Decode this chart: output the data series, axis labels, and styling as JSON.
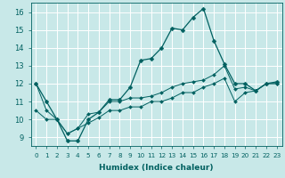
{
  "xlabel": "Humidex (Indice chaleur)",
  "ylabel": "",
  "background_color": "#c8e8e8",
  "grid_color": "#ffffff",
  "line_color": "#006060",
  "xlim": [
    -0.5,
    23.5
  ],
  "ylim": [
    8.5,
    16.5
  ],
  "xticks": [
    0,
    1,
    2,
    3,
    4,
    5,
    6,
    7,
    8,
    9,
    10,
    11,
    12,
    13,
    14,
    15,
    16,
    17,
    18,
    19,
    20,
    21,
    22,
    23
  ],
  "yticks": [
    9,
    10,
    11,
    12,
    13,
    14,
    15,
    16
  ],
  "series": [
    {
      "x": [
        0,
        1,
        2,
        3,
        4,
        5,
        6,
        7,
        8,
        9,
        10,
        11,
        12,
        13,
        14,
        15,
        16,
        17,
        18,
        19,
        20,
        21,
        22,
        23
      ],
      "y": [
        12,
        11,
        10,
        8.8,
        8.8,
        10,
        10.4,
        11.1,
        11.1,
        11.8,
        13.3,
        13.4,
        14.0,
        15.1,
        15.0,
        15.7,
        16.2,
        14.4,
        13.1,
        12.0,
        12.0,
        11.6,
        12.0,
        12.1
      ]
    },
    {
      "x": [
        0,
        1,
        2,
        3,
        4,
        5,
        6,
        7,
        8,
        9,
        10,
        11,
        12,
        13,
        14,
        15,
        16,
        17,
        18,
        19,
        20,
        21,
        22,
        23
      ],
      "y": [
        12,
        10.5,
        10.0,
        9.2,
        9.5,
        10.3,
        10.4,
        11.0,
        11.0,
        11.2,
        11.2,
        11.3,
        11.5,
        11.8,
        12.0,
        12.1,
        12.2,
        12.5,
        13.0,
        11.7,
        11.8,
        11.6,
        12.0,
        12.0
      ]
    },
    {
      "x": [
        0,
        1,
        2,
        3,
        4,
        5,
        6,
        7,
        8,
        9,
        10,
        11,
        12,
        13,
        14,
        15,
        16,
        17,
        18,
        19,
        20,
        21,
        22,
        23
      ],
      "y": [
        10.5,
        10.0,
        10.0,
        9.2,
        9.5,
        9.8,
        10.1,
        10.5,
        10.5,
        10.7,
        10.7,
        11.0,
        11.0,
        11.2,
        11.5,
        11.5,
        11.8,
        12.0,
        12.3,
        11.0,
        11.5,
        11.6,
        12.0,
        12.0
      ]
    }
  ],
  "marker_size_main": 2.5,
  "marker_size_other": 2.0,
  "lw_main": 0.9,
  "lw_other": 0.7,
  "xtick_fontsize": 5.2,
  "ytick_fontsize": 6.0,
  "xlabel_fontsize": 6.5
}
